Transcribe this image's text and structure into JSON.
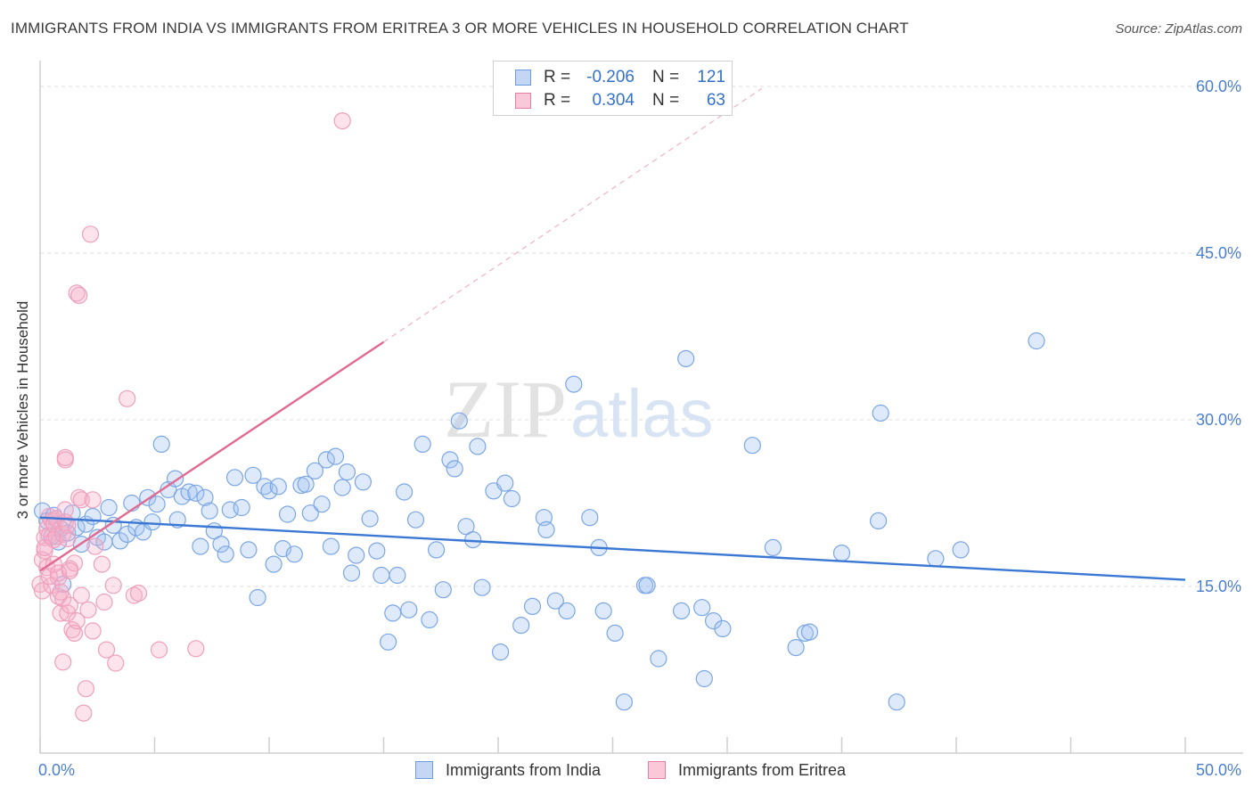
{
  "title": "IMMIGRANTS FROM INDIA VS IMMIGRANTS FROM ERITREA 3 OR MORE VEHICLES IN HOUSEHOLD CORRELATION CHART",
  "source": "Source: ZipAtlas.com",
  "watermark": {
    "zip": "ZIP",
    "atlas": "atlas"
  },
  "stats": [
    {
      "r_label": "R =",
      "r_value": "-0.206",
      "n_label": "N =",
      "n_value": "121",
      "color": "#6b9be0",
      "fill": "#c3d7f5"
    },
    {
      "r_label": "R =",
      "r_value": "0.304",
      "n_label": "N =",
      "n_value": "63",
      "color": "#e87fa3",
      "fill": "#f9c9d9"
    }
  ],
  "legend": [
    {
      "label": "Immigrants from India",
      "color": "#6b9be0",
      "fill": "#c3d7f5"
    },
    {
      "label": "Immigrants from Eritrea",
      "color": "#e87fa3",
      "fill": "#f9c9d9"
    }
  ],
  "chart_data": {
    "type": "scatter",
    "ylabel": "3 or more Vehicles in Household",
    "xlabel": "",
    "xlim": [
      0,
      50
    ],
    "ylim": [
      0,
      60
    ],
    "x_tick_labels": [
      {
        "value": 0,
        "label": "0.0%"
      },
      {
        "value": 50,
        "label": "50.0%"
      }
    ],
    "y_tick_labels": [
      {
        "value": 15,
        "label": "15.0%"
      },
      {
        "value": 30,
        "label": "30.0%"
      },
      {
        "value": 45,
        "label": "45.0%"
      },
      {
        "value": 60,
        "label": "60.0%"
      }
    ],
    "series": [
      {
        "name": "Immigrants from India",
        "color": "#3b78d4",
        "fill": "rgba(160,195,240,0.35)",
        "stroke": "#7ba6e3",
        "trend": {
          "x0": 0,
          "y0": 21.2,
          "x1": 50,
          "y1": 15.6,
          "dashed_to": null
        },
        "points": [
          [
            0.1,
            21.8
          ],
          [
            0.3,
            20.9
          ],
          [
            0.5,
            19.5
          ],
          [
            0.6,
            21.4
          ],
          [
            0.8,
            19.0
          ],
          [
            0.9,
            20.2
          ],
          [
            1.0,
            15.2
          ],
          [
            1.2,
            19.8
          ],
          [
            1.4,
            21.6
          ],
          [
            1.6,
            20.3
          ],
          [
            1.8,
            18.8
          ],
          [
            2.0,
            20.6
          ],
          [
            2.3,
            21.3
          ],
          [
            2.5,
            19.4
          ],
          [
            2.8,
            19.0
          ],
          [
            3.0,
            22.1
          ],
          [
            3.2,
            20.5
          ],
          [
            3.5,
            19.1
          ],
          [
            3.8,
            19.7
          ],
          [
            4.0,
            22.5
          ],
          [
            4.2,
            20.3
          ],
          [
            4.5,
            19.9
          ],
          [
            4.7,
            23.0
          ],
          [
            4.9,
            20.8
          ],
          [
            5.1,
            22.4
          ],
          [
            5.3,
            27.8
          ],
          [
            5.6,
            23.7
          ],
          [
            5.9,
            24.7
          ],
          [
            6.0,
            21.0
          ],
          [
            6.2,
            23.1
          ],
          [
            6.5,
            23.5
          ],
          [
            6.8,
            23.4
          ],
          [
            7.0,
            18.6
          ],
          [
            7.2,
            23.0
          ],
          [
            7.4,
            21.8
          ],
          [
            7.6,
            20.0
          ],
          [
            7.9,
            18.8
          ],
          [
            8.1,
            17.9
          ],
          [
            8.3,
            21.9
          ],
          [
            8.5,
            24.8
          ],
          [
            8.8,
            22.1
          ],
          [
            9.1,
            18.3
          ],
          [
            9.3,
            25.0
          ],
          [
            9.5,
            14.0
          ],
          [
            9.8,
            24.0
          ],
          [
            10.0,
            23.6
          ],
          [
            10.2,
            17.0
          ],
          [
            10.4,
            24.0
          ],
          [
            10.6,
            18.4
          ],
          [
            10.8,
            21.5
          ],
          [
            11.1,
            17.9
          ],
          [
            11.4,
            24.1
          ],
          [
            11.6,
            24.2
          ],
          [
            11.8,
            21.6
          ],
          [
            12.0,
            25.4
          ],
          [
            12.3,
            22.4
          ],
          [
            12.5,
            26.4
          ],
          [
            12.7,
            18.6
          ],
          [
            12.9,
            26.7
          ],
          [
            13.2,
            23.9
          ],
          [
            13.4,
            25.3
          ],
          [
            13.6,
            16.2
          ],
          [
            13.8,
            17.8
          ],
          [
            14.1,
            24.4
          ],
          [
            14.4,
            21.1
          ],
          [
            14.7,
            18.2
          ],
          [
            14.9,
            16.0
          ],
          [
            15.2,
            10.0
          ],
          [
            15.4,
            12.6
          ],
          [
            15.6,
            16.0
          ],
          [
            15.9,
            23.5
          ],
          [
            16.1,
            12.9
          ],
          [
            16.4,
            21.0
          ],
          [
            16.7,
            27.8
          ],
          [
            17.0,
            12.0
          ],
          [
            17.3,
            18.3
          ],
          [
            17.6,
            14.7
          ],
          [
            17.9,
            26.4
          ],
          [
            18.1,
            25.6
          ],
          [
            18.3,
            29.9
          ],
          [
            18.6,
            20.4
          ],
          [
            18.9,
            19.2
          ],
          [
            19.1,
            27.6
          ],
          [
            19.3,
            14.9
          ],
          [
            19.8,
            23.6
          ],
          [
            20.1,
            9.1
          ],
          [
            20.3,
            24.3
          ],
          [
            20.6,
            22.9
          ],
          [
            21.0,
            11.5
          ],
          [
            21.5,
            13.2
          ],
          [
            22.0,
            21.2
          ],
          [
            22.1,
            20.1
          ],
          [
            22.5,
            13.7
          ],
          [
            23.0,
            12.8
          ],
          [
            23.3,
            33.2
          ],
          [
            24.0,
            21.2
          ],
          [
            24.4,
            18.5
          ],
          [
            24.6,
            12.8
          ],
          [
            25.1,
            10.8
          ],
          [
            25.5,
            4.6
          ],
          [
            26.4,
            15.1
          ],
          [
            27.0,
            8.5
          ],
          [
            28.0,
            12.8
          ],
          [
            28.2,
            35.5
          ],
          [
            28.9,
            13.1
          ],
          [
            29.4,
            11.9
          ],
          [
            29.0,
            6.7
          ],
          [
            29.8,
            11.2
          ],
          [
            31.1,
            27.7
          ],
          [
            32.0,
            18.5
          ],
          [
            33.0,
            9.5
          ],
          [
            33.4,
            10.8
          ],
          [
            35.0,
            18.0
          ],
          [
            36.6,
            20.9
          ],
          [
            36.7,
            30.6
          ],
          [
            37.4,
            4.6
          ],
          [
            39.1,
            17.5
          ],
          [
            40.2,
            18.3
          ],
          [
            43.5,
            37.1
          ],
          [
            33.6,
            10.9
          ],
          [
            26.5,
            15.1
          ]
        ]
      },
      {
        "name": "Immigrants from Eritrea",
        "color": "#e06a92",
        "fill": "rgba(245,175,200,0.35)",
        "stroke": "#eea0bd",
        "trend": {
          "x0": 0,
          "y0": 16.4,
          "x1": 15.0,
          "y1": 37.0,
          "dashed_to": {
            "x": 31.5,
            "y": 59.8
          }
        },
        "points": [
          [
            0.0,
            15.2
          ],
          [
            0.1,
            14.6
          ],
          [
            0.1,
            17.4
          ],
          [
            0.2,
            19.4
          ],
          [
            0.2,
            18.2
          ],
          [
            0.3,
            20.2
          ],
          [
            0.3,
            16.7
          ],
          [
            0.4,
            21.3
          ],
          [
            0.4,
            19.6
          ],
          [
            0.5,
            20.9
          ],
          [
            0.5,
            15.1
          ],
          [
            0.6,
            19.2
          ],
          [
            0.6,
            20.6
          ],
          [
            0.7,
            21.1
          ],
          [
            0.7,
            19.5
          ],
          [
            0.8,
            15.8
          ],
          [
            0.8,
            14.1
          ],
          [
            0.9,
            14.5
          ],
          [
            0.9,
            12.6
          ],
          [
            1.0,
            19.7
          ],
          [
            1.0,
            13.9
          ],
          [
            1.1,
            21.9
          ],
          [
            1.1,
            20.8
          ],
          [
            1.2,
            19.3
          ],
          [
            1.2,
            12.6
          ],
          [
            1.3,
            16.6
          ],
          [
            1.3,
            13.3
          ],
          [
            1.4,
            11.1
          ],
          [
            1.5,
            17.1
          ],
          [
            1.5,
            10.8
          ],
          [
            1.6,
            11.9
          ],
          [
            1.6,
            41.4
          ],
          [
            1.7,
            41.2
          ],
          [
            1.7,
            23.0
          ],
          [
            1.8,
            22.8
          ],
          [
            1.8,
            14.2
          ],
          [
            1.9,
            3.6
          ],
          [
            2.0,
            5.8
          ],
          [
            2.1,
            12.9
          ],
          [
            2.2,
            46.7
          ],
          [
            2.3,
            22.8
          ],
          [
            2.3,
            11.0
          ],
          [
            2.4,
            18.6
          ],
          [
            2.7,
            17.0
          ],
          [
            2.8,
            13.6
          ],
          [
            2.9,
            9.3
          ],
          [
            3.2,
            15.1
          ],
          [
            3.3,
            8.1
          ],
          [
            3.8,
            31.9
          ],
          [
            4.1,
            14.2
          ],
          [
            4.3,
            14.4
          ],
          [
            5.2,
            9.3
          ],
          [
            6.8,
            9.4
          ],
          [
            13.2,
            56.9
          ],
          [
            1.1,
            26.4
          ],
          [
            1.1,
            26.6
          ],
          [
            1.0,
            8.2
          ],
          [
            0.6,
            17.0
          ],
          [
            0.4,
            15.9
          ],
          [
            0.8,
            16.2
          ],
          [
            1.3,
            16.4
          ],
          [
            0.2,
            18.5
          ],
          [
            1.2,
            20.5
          ]
        ]
      }
    ]
  }
}
